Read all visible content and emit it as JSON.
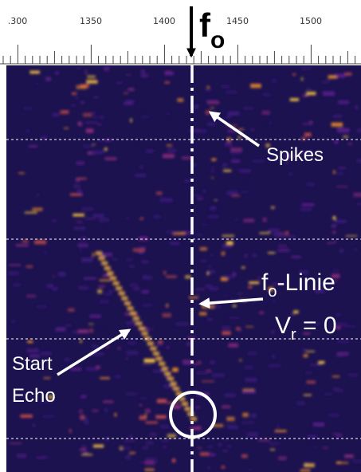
{
  "scale": {
    "tick_labels": [
      ".300",
      "1350",
      "1400",
      "1450",
      "1500"
    ]
  },
  "marker": {
    "symbol": "f",
    "subscript": "o"
  },
  "annotations": {
    "spikes": "Spikes",
    "line": {
      "symbol": "f",
      "subscript": "o",
      "text": "-Linie"
    },
    "velocity": {
      "symbol": "V",
      "subscript": "r",
      "text": " = 0"
    },
    "start_echo": [
      "Start",
      "Echo"
    ]
  }
}
